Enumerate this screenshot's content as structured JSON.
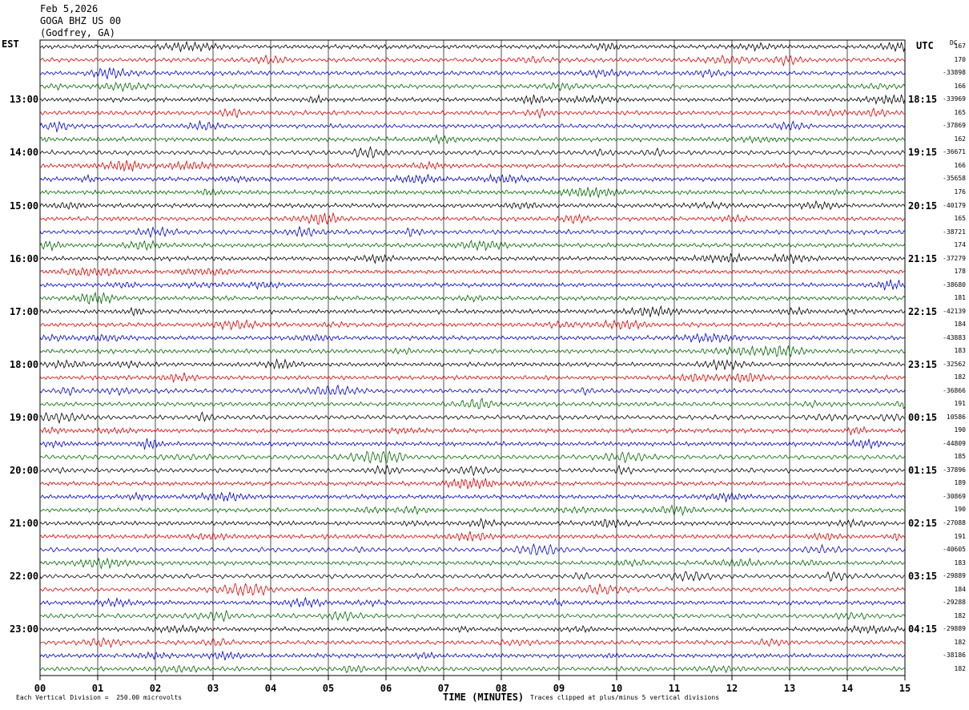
{
  "header": {
    "date": "Feb 5,2026",
    "station": "GOGA BHZ US 00",
    "location": "(Godfrey, GA)"
  },
  "left_axis_label": "EST",
  "right_axis_label": "UTC",
  "dc_header": "DC",
  "footer": {
    "scale_text": "Each Vertical Division =  250.00 microvolts",
    "xlabel": "TIME (MINUTES)",
    "clip_text": "Traces clipped at plus/minus 5 vertical divisions"
  },
  "chart_data": {
    "type": "line",
    "title": "Feb 5,2026  GOGA BHZ US 00 (Godfrey, GA)",
    "xlabel": "TIME (MINUTES)",
    "xlim": [
      0,
      15
    ],
    "x_ticks": [
      "00",
      "01",
      "02",
      "03",
      "04",
      "05",
      "06",
      "07",
      "08",
      "09",
      "10",
      "11",
      "12",
      "13",
      "14",
      "15"
    ],
    "left_time_labels": [
      "13:00",
      "14:00",
      "15:00",
      "16:00",
      "17:00",
      "18:00",
      "19:00",
      "20:00",
      "21:00",
      "22:00",
      "23:00"
    ],
    "right_time_labels": [
      "18:15",
      "19:15",
      "20:15",
      "21:15",
      "22:15",
      "23:15",
      "00:15",
      "01:15",
      "02:15",
      "03:15",
      "04:15"
    ],
    "trace_colors": [
      "#000000",
      "#dd0000",
      "#0000cc",
      "#006600"
    ],
    "trace_count": 48,
    "dc_offsets": [
      "167",
      "170",
      "-33898",
      "166",
      "-33969",
      "165",
      "-37869",
      "162",
      "-36671",
      "166",
      "-35658",
      "176",
      "-40179",
      "165",
      "-38721",
      "174",
      "-37279",
      "178",
      "-38680",
      "181",
      "-42139",
      "184",
      "-43883",
      "183",
      "-32562",
      "182",
      "-36866",
      "191",
      "10586",
      "190",
      "-44809",
      "185",
      "-37896",
      "189",
      "-30869",
      "190",
      "-27088",
      "191",
      "-40605",
      "183",
      "-29889",
      "184",
      "-29288",
      "182",
      "-29889",
      "182",
      "-38186",
      "182"
    ],
    "grid": true,
    "units": "microvolts",
    "vertical_division": 250.0
  }
}
